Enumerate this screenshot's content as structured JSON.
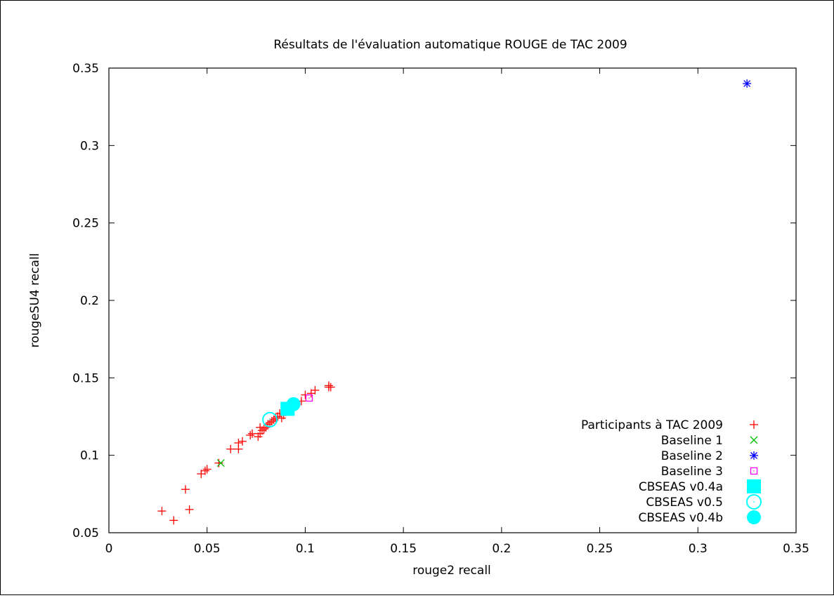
{
  "chart_data": {
    "type": "scatter",
    "title": "Résultats de l'évaluation automatique ROUGE de TAC 2009",
    "xlabel": "rouge2 recall",
    "ylabel": "rougeSU4 recall",
    "xlim": [
      0,
      0.35
    ],
    "ylim": [
      0.05,
      0.35
    ],
    "xticks": [
      0,
      0.05,
      0.1,
      0.15,
      0.2,
      0.25,
      0.3,
      0.35
    ],
    "xtick_labels": [
      "0",
      "0.05",
      "0.1",
      "0.15",
      "0.2",
      "0.25",
      "0.3",
      "0.35"
    ],
    "yticks": [
      0.05,
      0.1,
      0.15,
      0.2,
      0.25,
      0.3,
      0.35
    ],
    "ytick_labels": [
      "0.05",
      "0.1",
      "0.15",
      "0.2",
      "0.25",
      "0.3",
      "0.35"
    ],
    "grid": false,
    "legend_position": "bottom-right",
    "series": [
      {
        "name": "Participants à TAC 2009",
        "marker": "plus",
        "color": "#ff0000",
        "points": [
          [
            0.027,
            0.064
          ],
          [
            0.033,
            0.058
          ],
          [
            0.039,
            0.078
          ],
          [
            0.041,
            0.065
          ],
          [
            0.047,
            0.088
          ],
          [
            0.049,
            0.09
          ],
          [
            0.05,
            0.091
          ],
          [
            0.056,
            0.095
          ],
          [
            0.062,
            0.104
          ],
          [
            0.066,
            0.104
          ],
          [
            0.066,
            0.108
          ],
          [
            0.068,
            0.109
          ],
          [
            0.072,
            0.113
          ],
          [
            0.073,
            0.114
          ],
          [
            0.076,
            0.112
          ],
          [
            0.077,
            0.114
          ],
          [
            0.077,
            0.118
          ],
          [
            0.078,
            0.116
          ],
          [
            0.079,
            0.117
          ],
          [
            0.08,
            0.118
          ],
          [
            0.081,
            0.12
          ],
          [
            0.082,
            0.121
          ],
          [
            0.083,
            0.122
          ],
          [
            0.084,
            0.123
          ],
          [
            0.085,
            0.124
          ],
          [
            0.086,
            0.125
          ],
          [
            0.087,
            0.127
          ],
          [
            0.088,
            0.124
          ],
          [
            0.089,
            0.126
          ],
          [
            0.09,
            0.128
          ],
          [
            0.091,
            0.13
          ],
          [
            0.093,
            0.131
          ],
          [
            0.095,
            0.133
          ],
          [
            0.098,
            0.135
          ],
          [
            0.1,
            0.139
          ],
          [
            0.103,
            0.14
          ],
          [
            0.105,
            0.142
          ],
          [
            0.112,
            0.144
          ],
          [
            0.112,
            0.145
          ],
          [
            0.113,
            0.144
          ]
        ]
      },
      {
        "name": "Baseline 1",
        "marker": "cross",
        "color": "#00c000",
        "points": [
          [
            0.057,
            0.095
          ]
        ]
      },
      {
        "name": "Baseline 2",
        "marker": "asterisk",
        "color": "#0000ff",
        "points": [
          [
            0.325,
            0.34
          ]
        ]
      },
      {
        "name": "Baseline 3",
        "marker": "open-square",
        "color": "#ff00ff",
        "points": [
          [
            0.102,
            0.137
          ]
        ]
      },
      {
        "name": "CBSEAS v0.4a",
        "marker": "filled-square",
        "color": "#00ffff",
        "points": [
          [
            0.091,
            0.13
          ]
        ]
      },
      {
        "name": "CBSEAS v0.5",
        "marker": "open-circle",
        "color": "#00ffff",
        "points": [
          [
            0.082,
            0.123
          ]
        ]
      },
      {
        "name": "CBSEAS v0.4b",
        "marker": "filled-circle",
        "color": "#00ffff",
        "points": [
          [
            0.094,
            0.133
          ]
        ]
      }
    ]
  }
}
